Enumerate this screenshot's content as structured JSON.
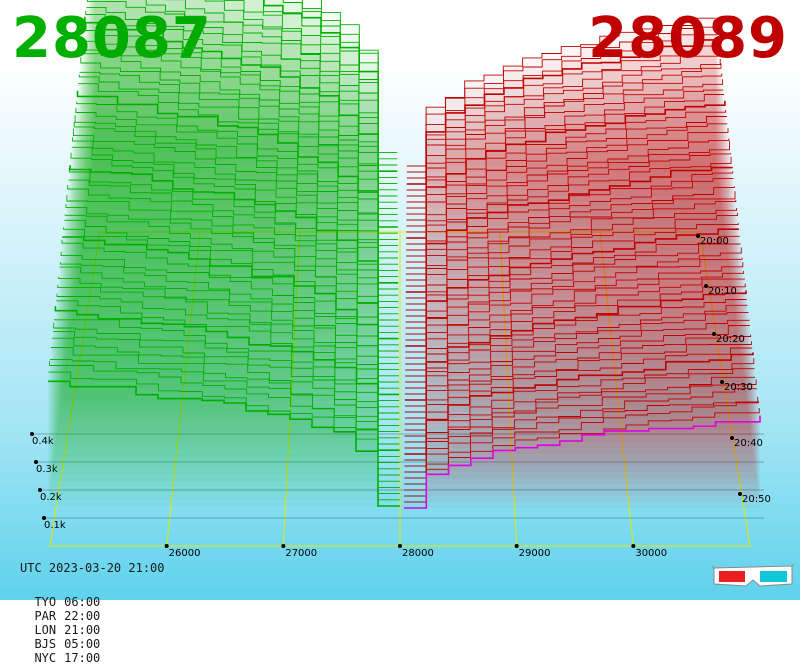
{
  "prices": {
    "bid": "28087",
    "ask": "28089"
  },
  "colors": {
    "bid": "#00b000",
    "ask": "#c00000",
    "grid": "#e8e800",
    "latest_ask": "#e000e0"
  },
  "chart_data": {
    "type": "area",
    "projection": "3d-perspective",
    "x": {
      "ticks": [
        26000,
        27000,
        28000,
        29000,
        30000
      ],
      "tick_labels": [
        "26000",
        "27000",
        "28000",
        "29000",
        "30000"
      ]
    },
    "y": {
      "ticks": [
        100,
        200,
        300,
        400
      ],
      "tick_labels": [
        "0.1k",
        "0.2k",
        "0.3k",
        "0.4k"
      ]
    },
    "z": {
      "ticks": [
        "20:00",
        "20:10",
        "20:20",
        "20:30",
        "20:40",
        "20:50"
      ]
    },
    "series": [
      {
        "side": "bid",
        "color": "#00b000"
      },
      {
        "side": "ask",
        "color": "#c00000"
      }
    ],
    "grid": true
  },
  "footer": {
    "utc": "UTC 2023-03-20 21:00",
    "zones": [
      {
        "city": "TYO",
        "time": "06:00"
      },
      {
        "city": "PAR",
        "time": "22:00"
      },
      {
        "city": "LON",
        "time": "21:00"
      },
      {
        "city": "BJS",
        "time": "05:00"
      },
      {
        "city": "NYC",
        "time": "17:00"
      }
    ]
  },
  "icons": {
    "glasses": "3d-glasses-icon"
  }
}
